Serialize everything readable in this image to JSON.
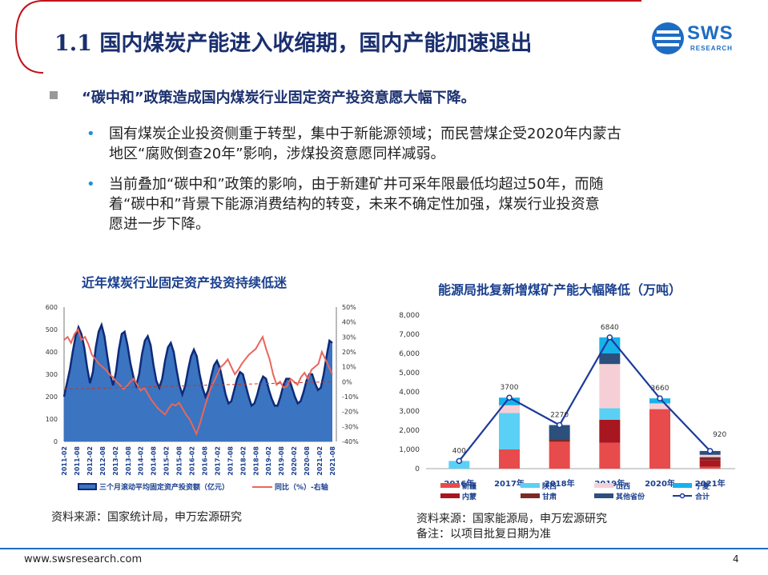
{
  "header": {
    "title": "1.1 国内煤炭产能进入收缩期，国内产能加速退出",
    "logo_text": "SWS",
    "logo_sub": "RESEARCH"
  },
  "main_point": "“碳中和”政策造成国内煤炭行业固定资产投资意愿大幅下降。",
  "sub_points": [
    {
      "line1": "国有煤炭企业投资侧重于转型，集中于新能源领域；而民营煤企受2020年内蒙古",
      "line2": "地区“腐败倒查20年”影响，涉煤投资意愿同样减弱。",
      "line3": ""
    },
    {
      "line1": "当前叠加“碳中和”政策的影响，由于新建矿井可采年限最低均超过50年，而随",
      "line2": "着“碳中和”背景下能源消费结构的转变，未来不确定性加强，煤炭行业投资意",
      "line3": "愿进一步下降。"
    }
  ],
  "chart_left_title": "近年煤炭行业固定资产投资持续低迷",
  "chart_right_title": "能源局批复新增煤矿产能大幅降低（万吨）",
  "source_left": "资料来源：国家统计局，申万宏源研究",
  "source_right": "资料来源：国家能源局，申万宏源研究",
  "note_right": "备注：以项目批复日期为准",
  "footer": {
    "url": "www.swsresearch.com",
    "page": "4"
  },
  "colors": {
    "navy": "#1a2f6e",
    "area_fill": "#3b74c0",
    "area_line": "#0e2a78",
    "yoy_line": "#e8675b",
    "accent": "#1d6cc4"
  },
  "chart_data": [
    {
      "type": "area",
      "title": "近年煤炭行业固定资产投资持续低迷",
      "x_ticks": [
        "2011-02",
        "2011-08",
        "2012-02",
        "2012-08",
        "2013-02",
        "2013-08",
        "2014-02",
        "2014-08",
        "2015-02",
        "2015-08",
        "2016-02",
        "2016-08",
        "2017-02",
        "2017-08",
        "2018-02",
        "2018-08",
        "2019-02",
        "2019-08",
        "2020-02",
        "2020-08",
        "2021-02",
        "2021-08"
      ],
      "y_left_ticks": [
        "600",
        "500",
        "400",
        "300",
        "200",
        "100",
        "0"
      ],
      "y_left_lim": [
        0,
        600
      ],
      "y_right_ticks": [
        "50%",
        "40%",
        "30%",
        "20%",
        "10%",
        "0%",
        "-10%",
        "-20%",
        "-30%",
        "-40%"
      ],
      "y_right_lim": [
        -40,
        50
      ],
      "legend": [
        "三个月滚动平均固定资产投资额（亿元）",
        "同比（%）-右轴"
      ],
      "series": [
        {
          "name": "三个月滚动平均固定资产投资额（亿元）",
          "axis": "left",
          "values": [
            200,
            260,
            320,
            400,
            470,
            510,
            480,
            420,
            330,
            260,
            310,
            420,
            490,
            520,
            470,
            380,
            300,
            250,
            310,
            410,
            480,
            490,
            430,
            350,
            290,
            250,
            300,
            390,
            450,
            470,
            430,
            340,
            270,
            240,
            280,
            360,
            420,
            440,
            400,
            320,
            250,
            210,
            250,
            320,
            380,
            410,
            380,
            300,
            240,
            200,
            230,
            290,
            340,
            360,
            330,
            270,
            210,
            170,
            180,
            230,
            280,
            310,
            300,
            250,
            200,
            160,
            170,
            210,
            260,
            290,
            280,
            230,
            190,
            160,
            160,
            200,
            250,
            280,
            280,
            240,
            200,
            170,
            180,
            220,
            270,
            300,
            300,
            260,
            230,
            240,
            300,
            380,
            450,
            440
          ]
        },
        {
          "name": "同比（%）-右轴",
          "axis": "right",
          "values": [
            28,
            30,
            26,
            32,
            35,
            28,
            30,
            25,
            18,
            15,
            12,
            10,
            8,
            5,
            3,
            0,
            -2,
            -5,
            -3,
            0,
            2,
            -2,
            -6,
            -4,
            -8,
            -12,
            -15,
            -18,
            -20,
            -22,
            -18,
            -15,
            -16,
            -14,
            -18,
            -22,
            -25,
            -30,
            -35,
            -28,
            -20,
            -12,
            -5,
            0,
            5,
            10,
            12,
            15,
            10,
            5,
            8,
            12,
            15,
            18,
            20,
            22,
            26,
            30,
            22,
            15,
            5,
            -2,
            0,
            -4,
            -3,
            2,
            0,
            -2,
            3,
            6,
            2,
            8,
            10,
            12,
            20,
            15,
            10,
            5
          ]
        }
      ]
    },
    {
      "type": "bar",
      "title": "能源局批复新增煤矿产能大幅降低（万吨）",
      "categories": [
        "2016年",
        "2017年",
        "2018年",
        "2019年",
        "2020年",
        "2021年"
      ],
      "ylim": [
        0,
        8000
      ],
      "y_ticks": [
        "8,000",
        "7,000",
        "6,000",
        "5,000",
        "4,000",
        "3,000",
        "2,000",
        "1,000",
        "0"
      ],
      "totals": [
        400,
        3700,
        2270,
        6840,
        3660,
        920
      ],
      "total_labels": [
        "400",
        "3700",
        "2270",
        "6840",
        "3660",
        "920"
      ],
      "series": [
        {
          "name": "新疆",
          "color": "#e84b4b",
          "values": [
            0,
            1000,
            1400,
            1350,
            3100,
            100
          ]
        },
        {
          "name": "内蒙",
          "color": "#a8161f",
          "values": [
            0,
            0,
            0,
            1200,
            0,
            350
          ]
        },
        {
          "name": "陕西",
          "color": "#5bd0f5",
          "values": [
            400,
            1900,
            0,
            600,
            0,
            0
          ]
        },
        {
          "name": "甘肃",
          "color": "#7a2b26",
          "values": [
            0,
            0,
            120,
            0,
            0,
            150
          ]
        },
        {
          "name": "山西",
          "color": "#f6cfd6",
          "values": [
            0,
            400,
            0,
            2300,
            300,
            120
          ]
        },
        {
          "name": "其他省份",
          "color": "#2d4f7c",
          "values": [
            0,
            0,
            750,
            550,
            0,
            200
          ]
        },
        {
          "name": "宁夏",
          "color": "#18b2ea",
          "values": [
            0,
            400,
            0,
            840,
            260,
            0
          ]
        }
      ],
      "legend": [
        "新疆",
        "陕西",
        "山西",
        "宁夏",
        "内蒙",
        "甘肃",
        "其他省份",
        "合计"
      ],
      "line_series": {
        "name": "合计",
        "color": "#1b3a9c"
      }
    }
  ]
}
